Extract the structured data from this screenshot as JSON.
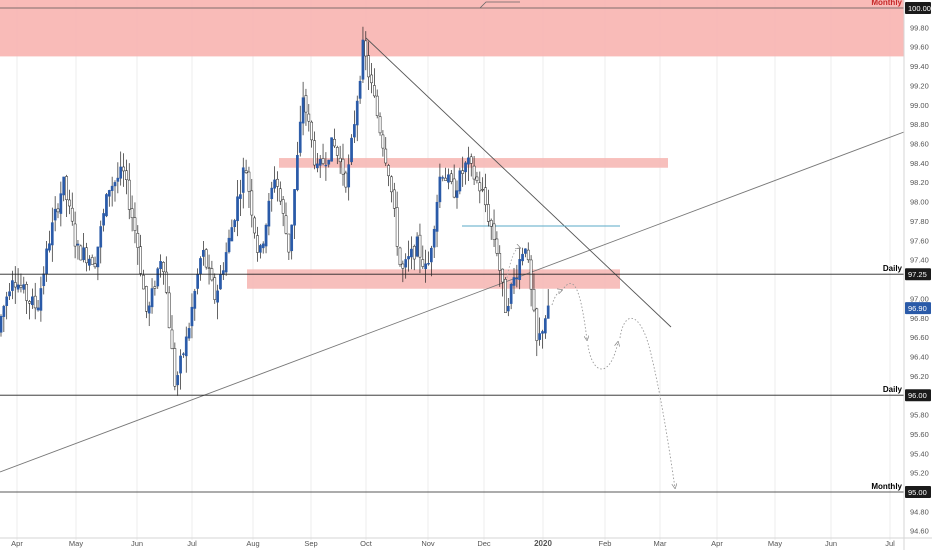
{
  "chart_data": {
    "type": "candlestick",
    "instrument_hint": "index",
    "y_range": [
      94.5,
      100.1
    ],
    "x_ticks": [
      "Apr",
      "May",
      "Jun",
      "Jul",
      "Aug",
      "Sep",
      "Oct",
      "Nov",
      "Dec",
      "2020",
      "Feb",
      "Mar",
      "Apr",
      "May",
      "Jun",
      "Jul"
    ],
    "y_ticks": [
      "100.00",
      "99.80",
      "99.60",
      "99.40",
      "99.20",
      "99.00",
      "98.80",
      "98.60",
      "98.40",
      "98.20",
      "98.00",
      "97.80",
      "97.60",
      "97.40",
      "97.25",
      "97.00",
      "96.90",
      "96.80",
      "96.60",
      "96.40",
      "96.20",
      "96.00",
      "95.80",
      "95.60",
      "95.40",
      "95.20",
      "95.00",
      "94.80",
      "94.60"
    ],
    "current_price_label": "96.90",
    "horizontal_levels": [
      {
        "value": 100.0,
        "label": "Monthly",
        "price_label": "100.00",
        "color": "#c62828"
      },
      {
        "value": 97.25,
        "label": "Daily",
        "price_label": "97.25",
        "color": "#000000"
      },
      {
        "value": 96.0,
        "label": "Daily",
        "price_label": "96.00",
        "color": "#000000"
      },
      {
        "value": 95.0,
        "label": "Monthly",
        "price_label": "95.00",
        "color": "#000000"
      }
    ],
    "zones": [
      {
        "x_start": "Mar",
        "x_end": "Jul",
        "y_low": 99.5,
        "y_high": 100.1,
        "color": "#f8b4b0"
      },
      {
        "x_start": "mid-Aug",
        "x_end": "early-Feb",
        "y_low": 98.35,
        "y_high": 98.45,
        "color": "#f6b8b5"
      },
      {
        "x_start": "early-Aug",
        "x_end": "early-Feb",
        "y_low": 97.1,
        "y_high": 97.3,
        "color": "#f6b8b5"
      }
    ],
    "colors": {
      "up_body": "#2a5aa8",
      "down_body": "#ffffff",
      "wick": "#222222",
      "zone": "#f6b8b5",
      "grid": "#eeeeee",
      "price_tag": "#2a5aa8"
    }
  }
}
